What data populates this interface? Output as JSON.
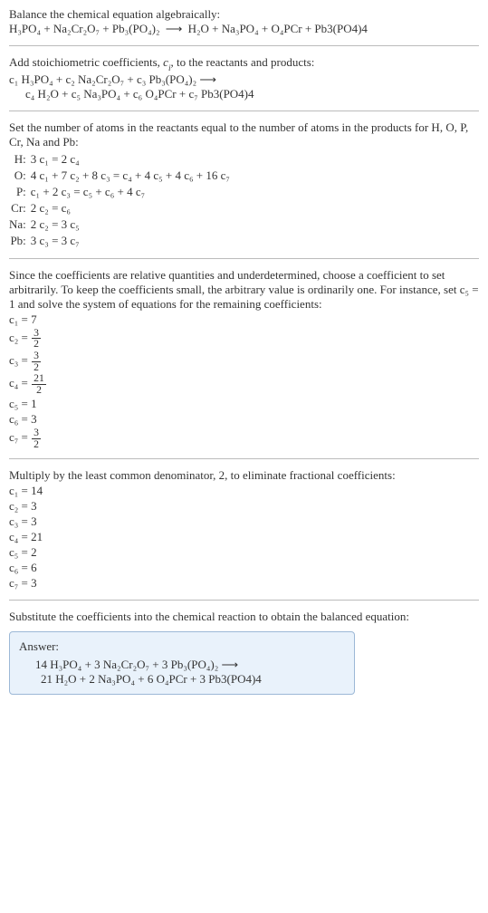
{
  "intro1": "Balance the chemical equation algebraically:",
  "reaction_unbalanced_left": "H₃PO₄ + Na₂Cr₂O₇ + Pb₃(PO₄)₂",
  "arrow": "⟶",
  "reaction_unbalanced_right": "H₂O + Na₃PO₄ + O₄PCr + Pb3(PO4)4",
  "intro2a": "Add stoichiometric coefficients, ",
  "intro2_ci_c": "c",
  "intro2_ci_i": "i",
  "intro2b": ", to the reactants and products:",
  "stoich_line1": "c₁ H₃PO₄ + c₂ Na₂Cr₂O₇ + c₃ Pb₃(PO₄)₂  ⟶",
  "stoich_line2": "c₄ H₂O + c₅ Na₃PO₄ + c₆ O₄PCr + c₇ Pb3(PO4)4",
  "intro3": "Set the number of atoms in the reactants equal to the number of atoms in the products for H, O, P, Cr, Na and Pb:",
  "eqs": [
    {
      "el": "H:",
      "rhs": "3 c₁ = 2 c₄"
    },
    {
      "el": "O:",
      "rhs": "4 c₁ + 7 c₂ + 8 c₃ = c₄ + 4 c₅ + 4 c₆ + 16 c₇"
    },
    {
      "el": "P:",
      "rhs": "c₁ + 2 c₃ = c₅ + c₆ + 4 c₇"
    },
    {
      "el": "Cr:",
      "rhs": "2 c₂ = c₆"
    },
    {
      "el": "Na:",
      "rhs": "2 c₂ = 3 c₅"
    },
    {
      "el": "Pb:",
      "rhs": "3 c₃ = 3 c₇"
    }
  ],
  "intro4": "Since the coefficients are relative quantities and underdetermined, choose a coefficient to set arbitrarily. To keep the coefficients small, the arbitrary value is ordinarily one. For instance, set c₅ = 1 and solve the system of equations for the remaining coefficients:",
  "coefs_frac": [
    {
      "lhs": "c₁ = 7",
      "frac": null
    },
    {
      "lhs": "c₂ = ",
      "frac": {
        "n": "3",
        "d": "2"
      }
    },
    {
      "lhs": "c₃ = ",
      "frac": {
        "n": "3",
        "d": "2"
      }
    },
    {
      "lhs": "c₄ = ",
      "frac": {
        "n": "21",
        "d": "2"
      }
    },
    {
      "lhs": "c₅ = 1",
      "frac": null
    },
    {
      "lhs": "c₆ = 3",
      "frac": null
    },
    {
      "lhs": "c₇ = ",
      "frac": {
        "n": "3",
        "d": "2"
      }
    }
  ],
  "intro5": "Multiply by the least common denominator, 2, to eliminate fractional coefficients:",
  "coefs_int": [
    "c₁ = 14",
    "c₂ = 3",
    "c₃ = 3",
    "c₄ = 21",
    "c₅ = 2",
    "c₆ = 6",
    "c₇ = 3"
  ],
  "intro6": "Substitute the coefficients into the chemical reaction to obtain the balanced equation:",
  "answer_title": "Answer:",
  "answer_line1": "14 H₃PO₄ + 3 Na₂Cr₂O₇ + 3 Pb₃(PO₄)₂  ⟶",
  "answer_line2": "21 H₂O + 2 Na₃PO₄ + 6 O₄PCr + 3 Pb3(PO4)4"
}
